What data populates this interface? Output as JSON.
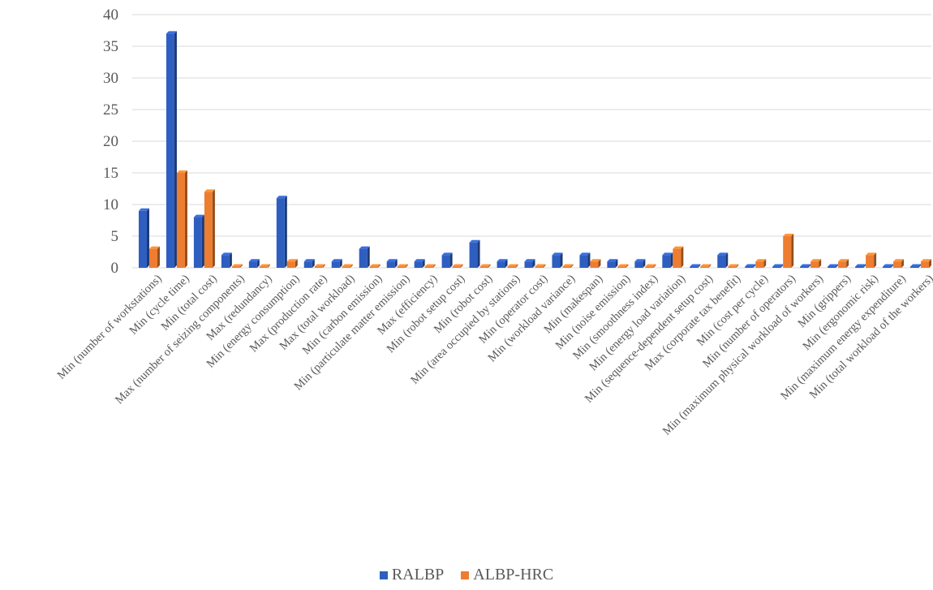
{
  "chart_data": {
    "type": "bar",
    "categories": [
      "Min (number of workstations)",
      "Min (cycle time)",
      "Min (total cost)",
      "Max (number of seizing components)",
      "Max (redundancy)",
      "Min (energy consumption)",
      "Max (production rate)",
      "Max (total workload)",
      "Min (carbon emission)",
      "Min (particulate matter emission)",
      "Max (efficiency)",
      "Min (robot setup cost)",
      "Min (robot cost)",
      "Min (area occupied by stations)",
      "Min (operator cost)",
      "Min (workload variance)",
      "Min (makespan)",
      "Min (noise emission)",
      "Min (smoothness index)",
      "Min (energy load variation)",
      "Min (sequence-dependent setup cost)",
      "Max (corporate tax benefit)",
      "Min (cost per cycle)",
      "Min (number of operators)",
      "Min (maximum physical workload of workers)",
      "Min (grippers)",
      "Min (ergonomic risk)",
      "Min (maximum energy expenditure)",
      "Min (total workload of the workers)"
    ],
    "series": [
      {
        "name": "RALBP",
        "color": "#2E5EBF",
        "values": [
          9,
          37,
          8,
          2,
          1,
          11,
          1,
          1,
          3,
          1,
          1,
          2,
          4,
          1,
          1,
          2,
          2,
          1,
          1,
          2,
          0,
          2,
          0,
          0,
          0,
          0,
          0,
          0,
          0
        ]
      },
      {
        "name": "ALBP-HRC",
        "color": "#ED7D31",
        "values": [
          3,
          15,
          12,
          0,
          0,
          1,
          0,
          0,
          0,
          0,
          0,
          0,
          0,
          0,
          0,
          0,
          1,
          0,
          0,
          3,
          0,
          0,
          1,
          5,
          1,
          1,
          2,
          1,
          1
        ]
      }
    ],
    "y_ticks": [
      "0",
      "5",
      "10",
      "15",
      "20",
      "25",
      "30",
      "35",
      "40"
    ],
    "ylim": [
      0,
      40
    ],
    "grid": true,
    "legend_position": "bottom",
    "title": "",
    "xlabel": "",
    "ylabel": ""
  }
}
